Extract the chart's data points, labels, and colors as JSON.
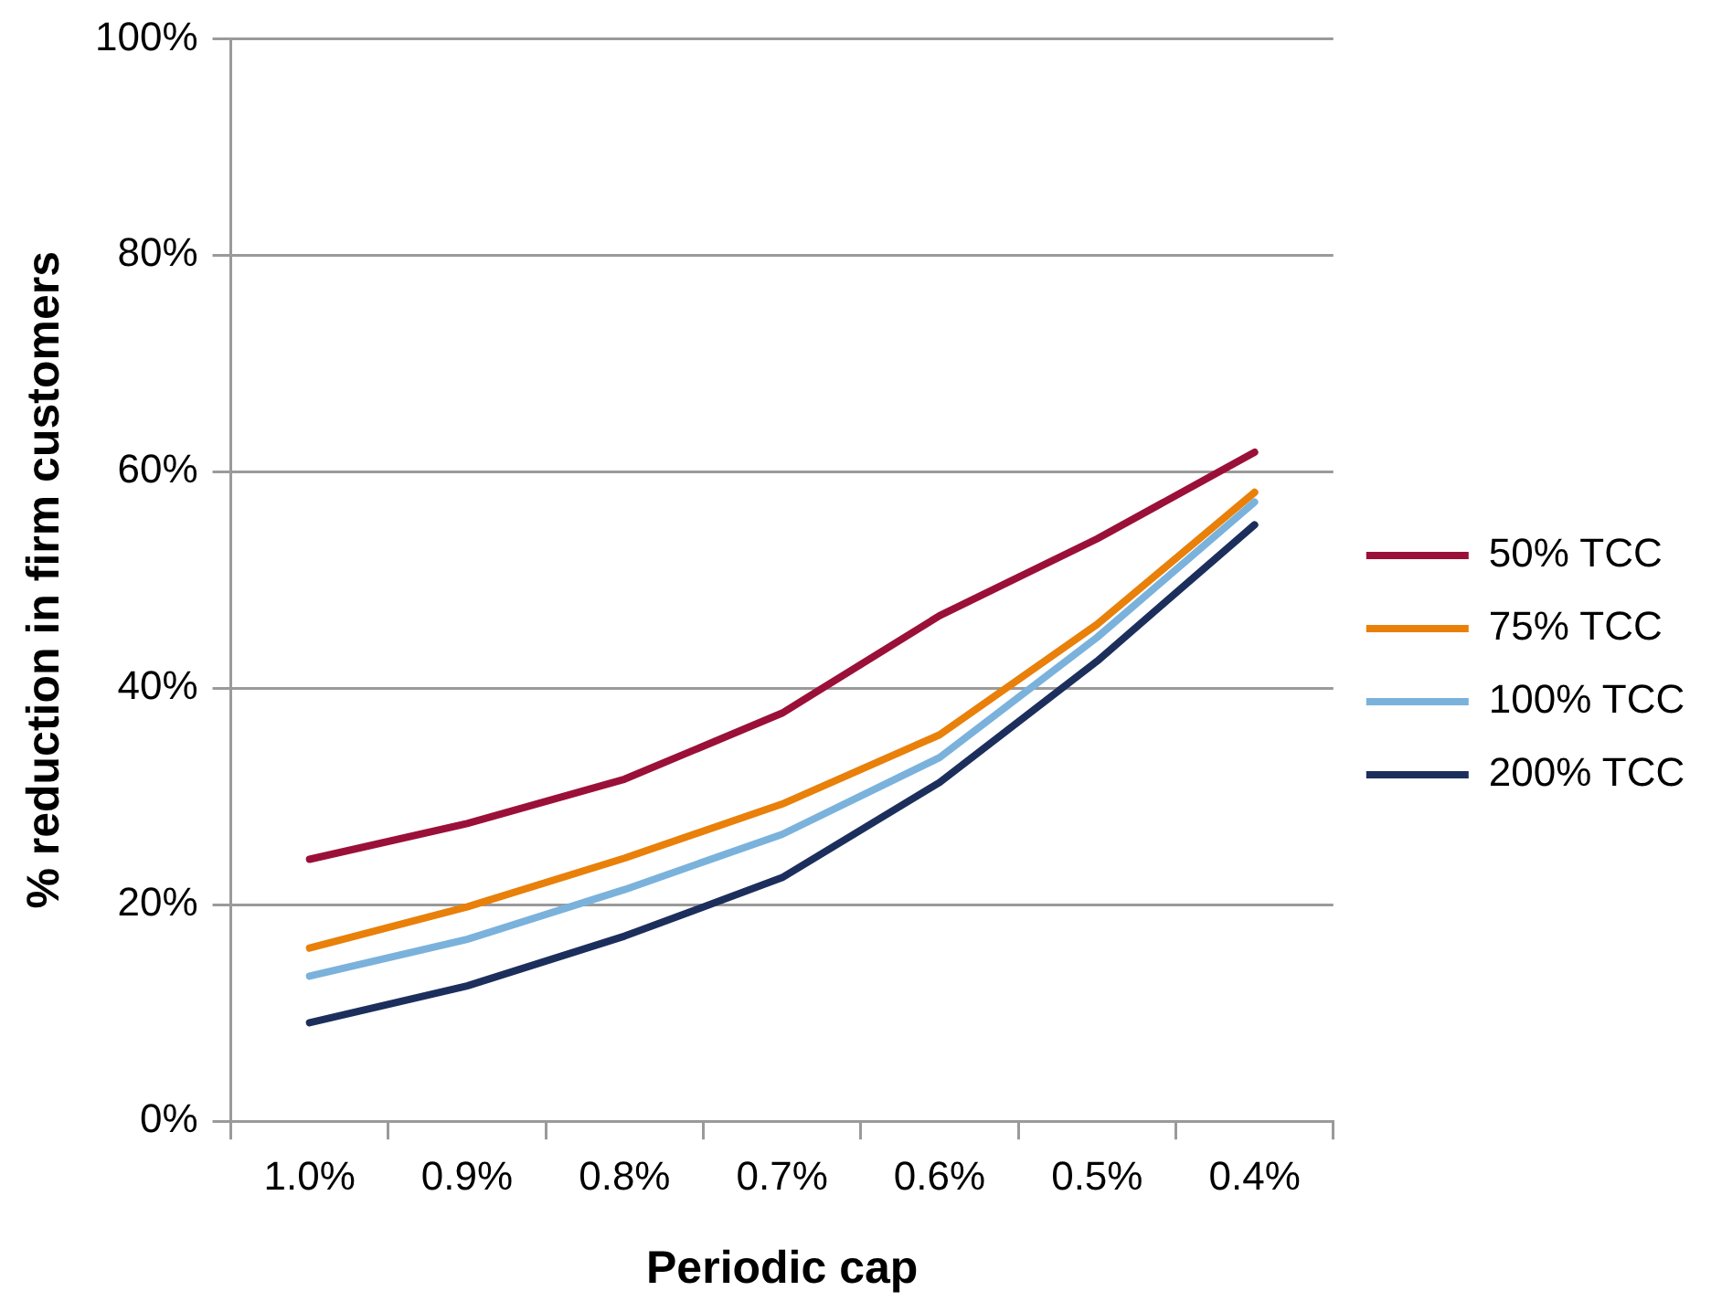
{
  "chart_data": {
    "type": "line",
    "xlabel": "Periodic cap",
    "ylabel": "% reduction in firm customers",
    "categories": [
      "1.0%",
      "0.9%",
      "0.8%",
      "0.7%",
      "0.6%",
      "0.5%",
      "0.4%"
    ],
    "series": [
      {
        "name": "50% TCC",
        "color": "#9b1038",
        "values": [
          24.2,
          27.5,
          31.6,
          37.7,
          46.7,
          53.8,
          61.8
        ]
      },
      {
        "name": "75% TCC",
        "color": "#e8800a",
        "values": [
          16.0,
          19.8,
          24.3,
          29.3,
          35.7,
          45.9,
          58.1
        ]
      },
      {
        "name": "100% TCC",
        "color": "#7ab2dc",
        "values": [
          13.4,
          16.8,
          21.4,
          26.5,
          33.6,
          44.7,
          57.2
        ]
      },
      {
        "name": "200% TCC",
        "color": "#1c2f5c",
        "values": [
          9.1,
          12.5,
          17.1,
          22.5,
          31.3,
          42.5,
          55.1
        ]
      }
    ],
    "ylim": [
      0,
      100
    ],
    "yticks": [
      {
        "value": 0,
        "label": "0%"
      },
      {
        "value": 20,
        "label": "20%"
      },
      {
        "value": 40,
        "label": "40%"
      },
      {
        "value": 60,
        "label": "60%"
      },
      {
        "value": 80,
        "label": "80%"
      },
      {
        "value": 100,
        "label": "100%"
      }
    ],
    "grid": "y",
    "legend": "right",
    "marker": "none",
    "line_style": "solid"
  }
}
